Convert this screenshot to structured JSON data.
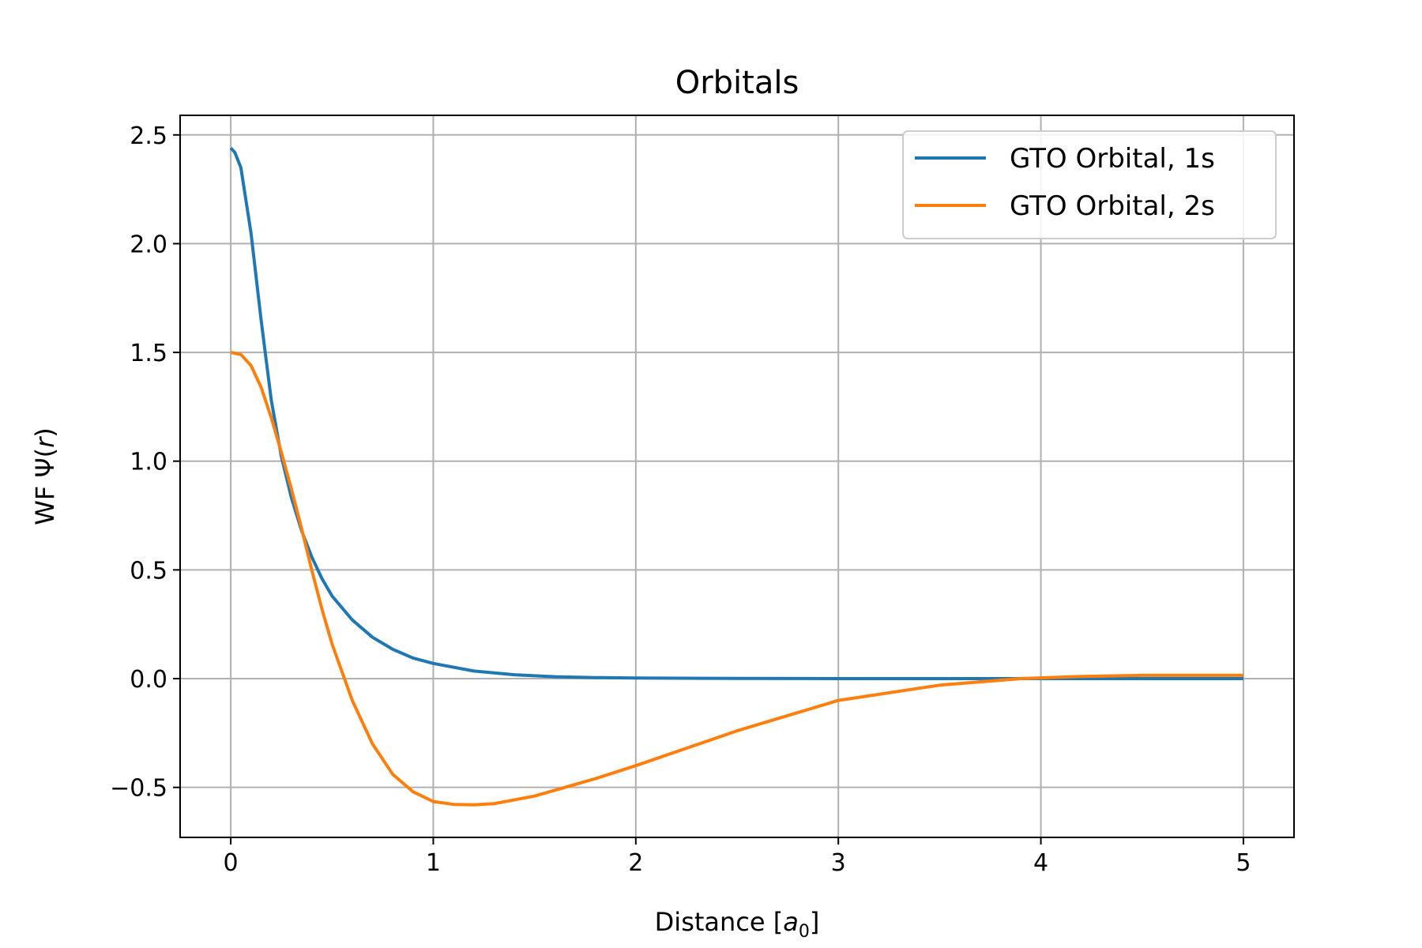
{
  "chart_data": {
    "type": "line",
    "title": "Orbitals",
    "xlabel": "Distance [a0]",
    "xlabel_main": "Distance [",
    "xlabel_symbol": "a",
    "xlabel_sub": "0",
    "xlabel_close": "]",
    "ylabel": "WF Ψ(r)",
    "ylabel_main": "WF Ψ(",
    "ylabel_var": "r",
    "ylabel_close": ")",
    "xlim": [
      -0.25,
      5.25
    ],
    "ylim": [
      -0.73,
      2.59
    ],
    "xticks": [
      0,
      1,
      2,
      3,
      4,
      5
    ],
    "xtick_labels": [
      "0",
      "1",
      "2",
      "3",
      "4",
      "5"
    ],
    "yticks": [
      -0.5,
      0.0,
      0.5,
      1.0,
      1.5,
      2.0,
      2.5
    ],
    "ytick_labels": [
      "−0.5",
      "0.0",
      "0.5",
      "1.0",
      "1.5",
      "2.0",
      "2.5"
    ],
    "grid": true,
    "legend_position": "top-right",
    "series": [
      {
        "name": "GTO Orbital, 1s",
        "color": "#1f77b4",
        "x": [
          0,
          0.02,
          0.05,
          0.1,
          0.15,
          0.2,
          0.25,
          0.3,
          0.35,
          0.4,
          0.45,
          0.5,
          0.6,
          0.7,
          0.8,
          0.9,
          1.0,
          1.2,
          1.4,
          1.6,
          1.8,
          2.0,
          2.5,
          3.0,
          4.0,
          5.0
        ],
        "y": [
          2.44,
          2.42,
          2.35,
          2.05,
          1.65,
          1.28,
          1.02,
          0.83,
          0.68,
          0.56,
          0.46,
          0.38,
          0.27,
          0.19,
          0.135,
          0.095,
          0.07,
          0.035,
          0.018,
          0.009,
          0.005,
          0.003,
          0.001,
          0.0,
          0.0,
          0.0
        ]
      },
      {
        "name": "GTO Orbital, 2s",
        "color": "#ff7f0e",
        "x": [
          0,
          0.05,
          0.1,
          0.15,
          0.2,
          0.25,
          0.3,
          0.35,
          0.4,
          0.45,
          0.5,
          0.6,
          0.7,
          0.8,
          0.9,
          1.0,
          1.1,
          1.2,
          1.3,
          1.5,
          1.8,
          2.0,
          2.5,
          3.0,
          3.5,
          3.9,
          4.2,
          4.5,
          5.0
        ],
        "y": [
          1.5,
          1.49,
          1.44,
          1.34,
          1.2,
          1.04,
          0.87,
          0.69,
          0.5,
          0.32,
          0.16,
          -0.1,
          -0.3,
          -0.44,
          -0.52,
          -0.565,
          -0.578,
          -0.58,
          -0.575,
          -0.54,
          -0.46,
          -0.4,
          -0.24,
          -0.1,
          -0.03,
          0.0,
          0.01,
          0.015,
          0.015
        ]
      }
    ]
  }
}
